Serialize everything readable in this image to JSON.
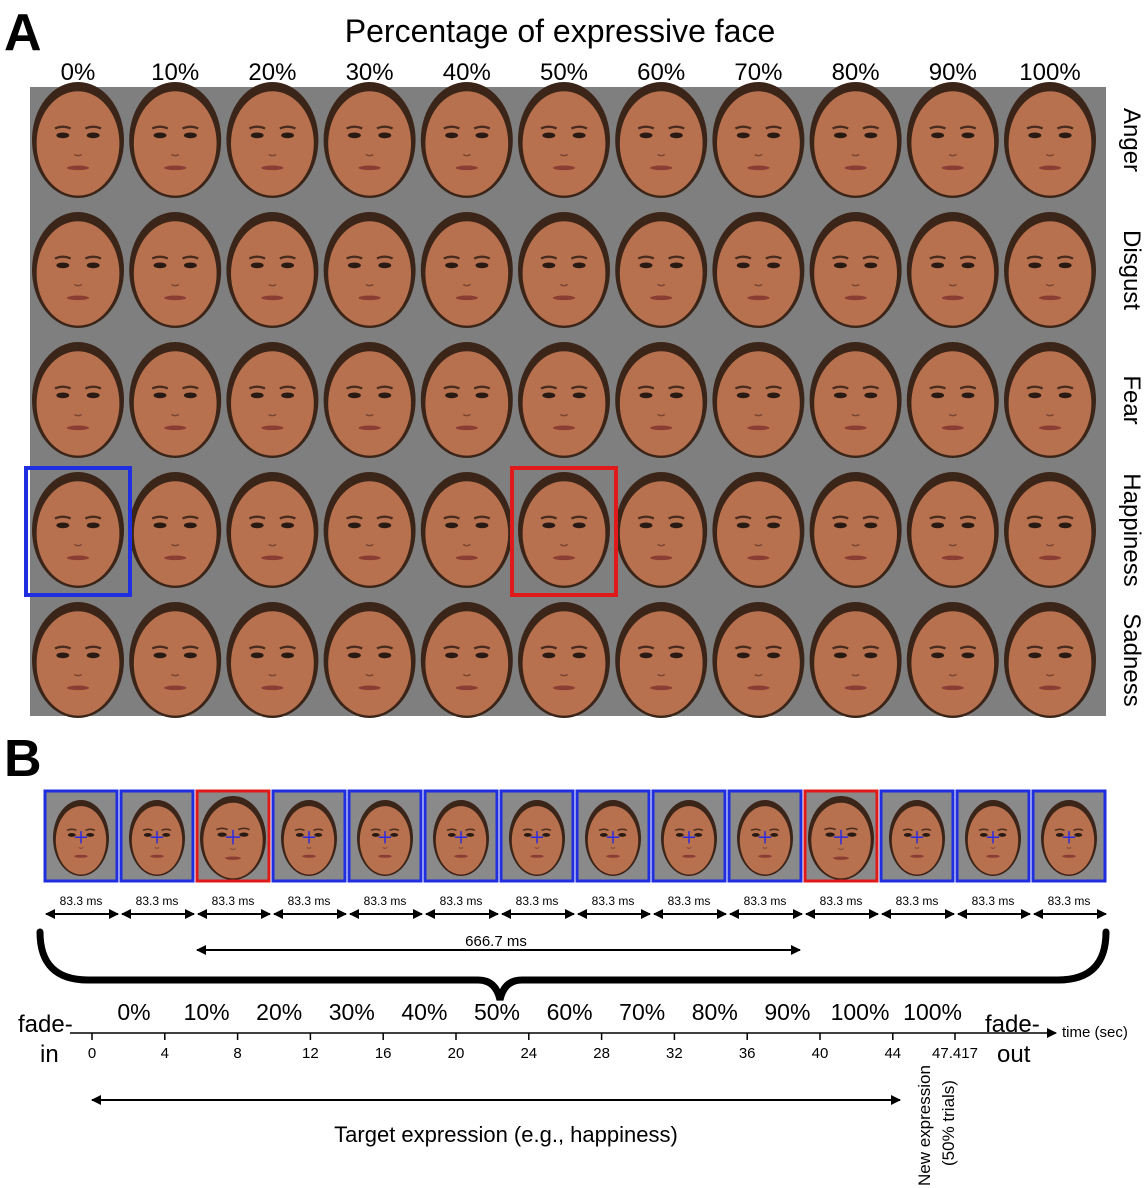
{
  "panel_a": {
    "letter": "A",
    "title": "Percentage of expressive face",
    "columns": [
      "0%",
      "10%",
      "20%",
      "30%",
      "40%",
      "50%",
      "60%",
      "70%",
      "80%",
      "90%",
      "100%"
    ],
    "rows": [
      "Anger",
      "Disgust",
      "Fear",
      "Happiness",
      "Sadness"
    ],
    "highlight": [
      {
        "row": 3,
        "col": 0,
        "color": "#1f2fe0"
      },
      {
        "row": 3,
        "col": 5,
        "color": "#e01a1a"
      }
    ],
    "colors": {
      "background": "#7f7f7f",
      "skin": "#b8714e",
      "hair": "#3b2418"
    }
  },
  "panel_b": {
    "letter": "B",
    "frame_borders": [
      "blue",
      "blue",
      "red",
      "blue",
      "blue",
      "blue",
      "blue",
      "blue",
      "blue",
      "blue",
      "red",
      "blue",
      "blue",
      "blue"
    ],
    "frame_duration": "83.3 ms",
    "interval": "666.7 ms",
    "percent_labels": [
      "0%",
      "10%",
      "20%",
      "30%",
      "40%",
      "50%",
      "60%",
      "70%",
      "80%",
      "90%",
      "100%",
      "100%"
    ],
    "fade_in": [
      "fade-",
      "in"
    ],
    "fade_out": [
      "fade-",
      "out"
    ],
    "axis_label": "time (sec)",
    "ticks": [
      "0",
      "4",
      "8",
      "12",
      "16",
      "20",
      "24",
      "28",
      "32",
      "36",
      "40",
      "44",
      "47.417"
    ],
    "target_label": "Target expression (e.g., happiness)",
    "new_expression": [
      "New expression",
      "(50% trials)"
    ],
    "colors": {
      "blue": "#1f2fe0",
      "red": "#e01a1a",
      "fixation": "#2a2ae0"
    }
  }
}
